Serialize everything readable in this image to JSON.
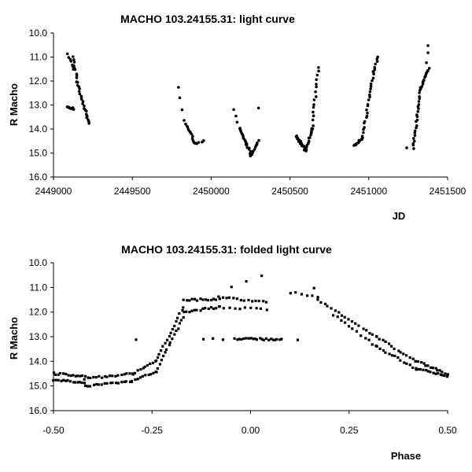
{
  "chart_data": [
    {
      "type": "scatter",
      "title": "MACHO 103.24155.31: light curve",
      "xlabel": "JD",
      "ylabel": "R Macho",
      "xlim": [
        2449000,
        2451500
      ],
      "ylim": [
        10.0,
        16.0
      ],
      "y_inverted": true,
      "grid": false,
      "legend": "none",
      "marker_color": "#000000",
      "x_ticks": [
        "2449000",
        "2449500",
        "2450000",
        "2450500",
        "2451000",
        "2451500"
      ],
      "y_ticks": [
        "10.0",
        "11.0",
        "12.0",
        "13.0",
        "14.0",
        "15.0",
        "16.0"
      ],
      "segments": [
        {
          "x0": 2449085,
          "x1": 2449125,
          "y0": 13.1,
          "y1": 13.15,
          "n": 10
        },
        {
          "x0": 2449090,
          "x1": 2449130,
          "y0": 10.9,
          "y1": 11.5,
          "n": 7
        },
        {
          "x0": 2449125,
          "x1": 2449150,
          "y0": 11.0,
          "y1": 12.0,
          "n": 10
        },
        {
          "x0": 2449150,
          "x1": 2449225,
          "y0": 12.0,
          "y1": 13.8,
          "n": 22
        },
        {
          "x0": 2449790,
          "x1": 2449830,
          "y0": 12.3,
          "y1": 13.6,
          "n": 4
        },
        {
          "x0": 2449840,
          "x1": 2449900,
          "y0": 13.8,
          "y1": 14.6,
          "n": 12
        },
        {
          "x0": 2449900,
          "x1": 2449950,
          "y0": 14.6,
          "y1": 14.5,
          "n": 5
        },
        {
          "x0": 2450140,
          "x1": 2450180,
          "y0": 13.2,
          "y1": 14.0,
          "n": 4
        },
        {
          "x0": 2450180,
          "x1": 2450250,
          "y0": 14.0,
          "y1": 15.0,
          "n": 18
        },
        {
          "x0": 2450250,
          "x1": 2450300,
          "y0": 15.1,
          "y1": 14.5,
          "n": 10
        },
        {
          "x0": 2450300,
          "x1": 2450300,
          "y0": 13.1,
          "y1": 13.1,
          "n": 1
        },
        {
          "x0": 2450540,
          "x1": 2450600,
          "y0": 14.3,
          "y1": 14.9,
          "n": 22
        },
        {
          "x0": 2450600,
          "x1": 2450640,
          "y0": 14.9,
          "y1": 14.0,
          "n": 14
        },
        {
          "x0": 2450640,
          "x1": 2450680,
          "y0": 14.0,
          "y1": 11.4,
          "n": 16
        },
        {
          "x0": 2450910,
          "x1": 2450960,
          "y0": 14.7,
          "y1": 14.4,
          "n": 12
        },
        {
          "x0": 2450960,
          "x1": 2451030,
          "y0": 14.4,
          "y1": 11.6,
          "n": 24
        },
        {
          "x0": 2451030,
          "x1": 2451060,
          "y0": 11.6,
          "y1": 11.0,
          "n": 7
        },
        {
          "x0": 2451240,
          "x1": 2451240,
          "y0": 14.8,
          "y1": 14.8,
          "n": 1
        },
        {
          "x0": 2451280,
          "x1": 2451330,
          "y0": 14.8,
          "y1": 12.3,
          "n": 24
        },
        {
          "x0": 2451330,
          "x1": 2451380,
          "y0": 12.3,
          "y1": 11.5,
          "n": 16
        },
        {
          "x0": 2451370,
          "x1": 2451380,
          "y0": 11.2,
          "y1": 10.5,
          "n": 3
        }
      ]
    },
    {
      "type": "scatter",
      "title": "MACHO 103.24155.31: folded light curve",
      "xlabel": "Phase",
      "ylabel": "R Macho",
      "xlim": [
        -0.5,
        0.5
      ],
      "ylim": [
        10.0,
        16.0
      ],
      "y_inverted": true,
      "grid": false,
      "legend": "none",
      "marker_color": "#000000",
      "x_ticks": [
        "-0.50",
        "-0.25",
        "0.00",
        "0.25",
        "0.50"
      ],
      "y_ticks": [
        "10.0",
        "11.0",
        "12.0",
        "13.0",
        "14.0",
        "15.0",
        "16.0"
      ],
      "segments": [
        {
          "x0": -0.5,
          "x1": -0.42,
          "y0": 14.5,
          "y1": 14.6,
          "n": 14
        },
        {
          "x0": -0.5,
          "x1": -0.42,
          "y0": 14.75,
          "y1": 14.85,
          "n": 14
        },
        {
          "x0": -0.42,
          "x1": -0.3,
          "y0": 14.7,
          "y1": 14.5,
          "n": 18
        },
        {
          "x0": -0.42,
          "x1": -0.3,
          "y0": 15.0,
          "y1": 14.8,
          "n": 18
        },
        {
          "x0": -0.3,
          "x1": -0.24,
          "y0": 14.5,
          "y1": 14.0,
          "n": 10
        },
        {
          "x0": -0.3,
          "x1": -0.24,
          "y0": 14.8,
          "y1": 14.4,
          "n": 10
        },
        {
          "x0": -0.24,
          "x1": -0.17,
          "y0": 14.0,
          "y1": 11.8,
          "n": 16
        },
        {
          "x0": -0.24,
          "x1": -0.17,
          "y0": 14.4,
          "y1": 12.2,
          "n": 16
        },
        {
          "x0": -0.17,
          "x1": -0.08,
          "y0": 11.5,
          "y1": 11.5,
          "n": 14
        },
        {
          "x0": -0.17,
          "x1": -0.08,
          "y0": 12.0,
          "y1": 11.8,
          "n": 14
        },
        {
          "x0": -0.08,
          "x1": 0.04,
          "y0": 11.4,
          "y1": 11.6,
          "n": 14
        },
        {
          "x0": -0.08,
          "x1": 0.04,
          "y0": 11.8,
          "y1": 11.9,
          "n": 10
        },
        {
          "x0": -0.05,
          "x1": 0.03,
          "y0": 11.0,
          "y1": 10.5,
          "n": 3
        },
        {
          "x0": -0.04,
          "x1": 0.08,
          "y0": 13.1,
          "y1": 13.1,
          "n": 22
        },
        {
          "x0": -0.12,
          "x1": -0.07,
          "y0": 13.1,
          "y1": 13.1,
          "n": 3
        },
        {
          "x0": 0.12,
          "x1": 0.12,
          "y0": 13.1,
          "y1": 13.1,
          "n": 1
        },
        {
          "x0": -0.29,
          "x1": -0.29,
          "y0": 13.1,
          "y1": 13.1,
          "n": 1
        },
        {
          "x0": 0.1,
          "x1": 0.17,
          "y0": 11.2,
          "y1": 11.4,
          "n": 6
        },
        {
          "x0": 0.16,
          "x1": 0.16,
          "y0": 11.0,
          "y1": 11.0,
          "n": 1
        },
        {
          "x0": 0.17,
          "x1": 0.32,
          "y0": 11.5,
          "y1": 13.0,
          "n": 18
        },
        {
          "x0": 0.21,
          "x1": 0.32,
          "y0": 12.1,
          "y1": 13.4,
          "n": 12
        },
        {
          "x0": 0.32,
          "x1": 0.42,
          "y0": 13.0,
          "y1": 14.0,
          "n": 14
        },
        {
          "x0": 0.32,
          "x1": 0.42,
          "y0": 13.4,
          "y1": 14.3,
          "n": 14
        },
        {
          "x0": 0.42,
          "x1": 0.5,
          "y0": 14.0,
          "y1": 14.5,
          "n": 14
        },
        {
          "x0": 0.42,
          "x1": 0.5,
          "y0": 14.3,
          "y1": 14.6,
          "n": 14
        }
      ]
    }
  ]
}
